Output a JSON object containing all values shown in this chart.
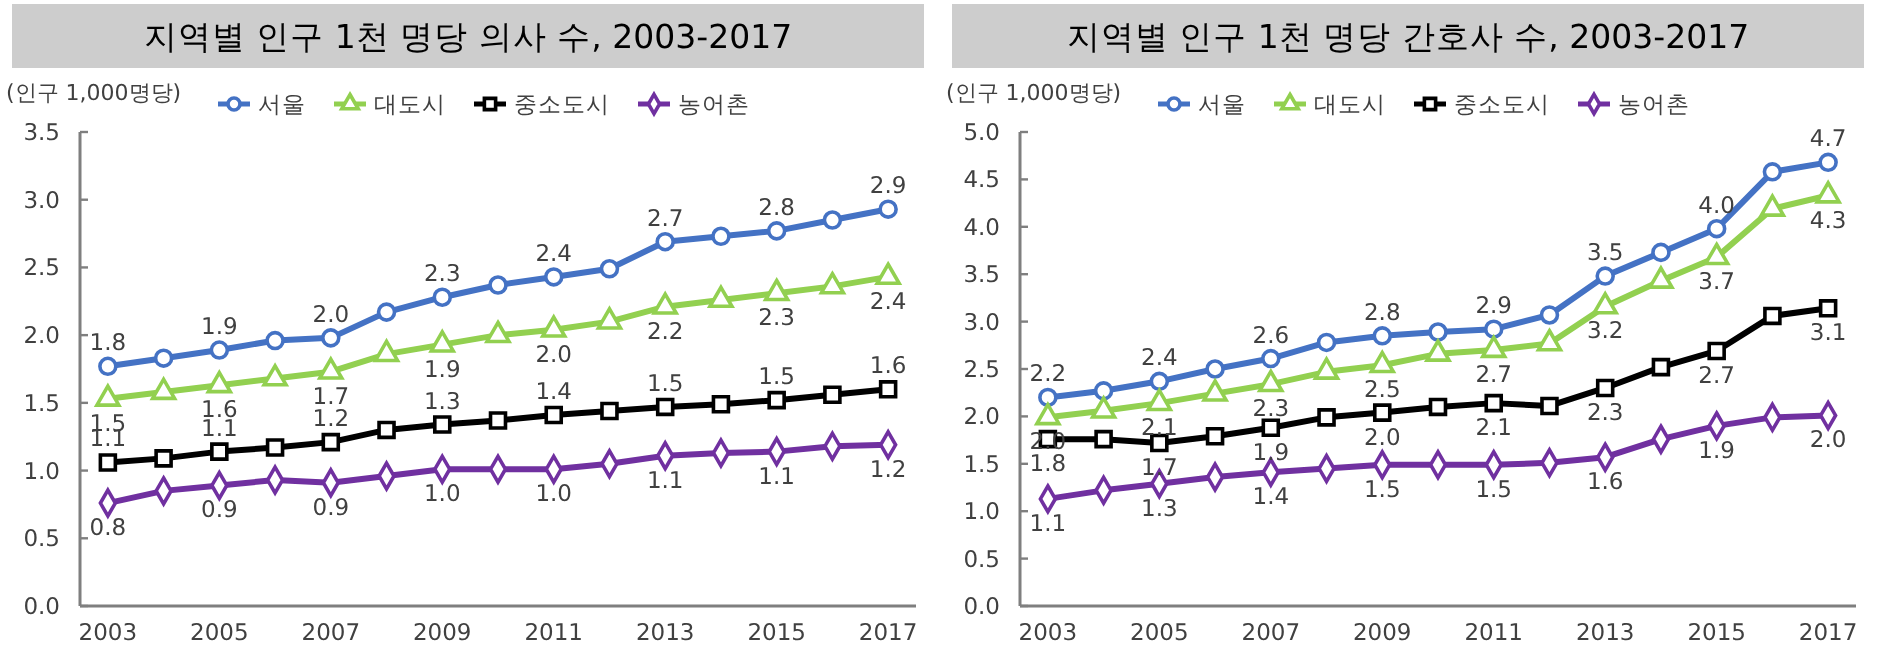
{
  "chart_data": [
    {
      "type": "line",
      "title": "지역별 인구 1천 명당 의사 수, 2003-2017",
      "ylabel": "(인구 1,000명당)",
      "legend": "top",
      "categories": [
        "2003",
        null,
        "2005",
        null,
        "2007",
        null,
        "2009",
        null,
        "2011",
        null,
        "2013",
        null,
        "2015",
        null,
        "2017"
      ],
      "ylim": [
        0,
        3.5
      ],
      "yticks": [
        {
          "value": 0,
          "label": "0.0"
        },
        {
          "value": 0.5,
          "label": "0.5"
        },
        {
          "value": 1,
          "label": "1.0"
        },
        {
          "value": 1.5,
          "label": "1.5"
        },
        {
          "value": 2,
          "label": "2.0"
        },
        {
          "value": 2.5,
          "label": "2.5"
        },
        {
          "value": 3,
          "label": "3.0"
        },
        {
          "value": 3.5,
          "label": "3.5"
        }
      ],
      "series": [
        {
          "name": "서울",
          "color": "#4472c4",
          "marker": "circle",
          "values": [
            1.77,
            1.83,
            1.89,
            1.96,
            1.98,
            2.17,
            2.28,
            2.37,
            2.43,
            2.49,
            2.69,
            2.73,
            2.77,
            2.85,
            2.93
          ],
          "value_labels": [
            "1.8",
            null,
            "1.9",
            null,
            "2.0",
            null,
            "2.3",
            null,
            "2.4",
            null,
            "2.7",
            null,
            "2.8",
            null,
            "2.9"
          ]
        },
        {
          "name": "대도시",
          "color": "#92d050",
          "marker": "triangle",
          "values": [
            1.53,
            1.58,
            1.63,
            1.68,
            1.73,
            1.86,
            1.93,
            2.0,
            2.04,
            2.1,
            2.21,
            2.26,
            2.31,
            2.36,
            2.43
          ],
          "value_labels": [
            "1.5",
            null,
            "1.6",
            null,
            "1.7",
            null,
            "1.9",
            null,
            "2.0",
            null,
            "2.2",
            null,
            "2.3",
            null,
            "2.4"
          ]
        },
        {
          "name": "중소도시",
          "color": "#000000",
          "marker": "square",
          "values": [
            1.06,
            1.09,
            1.14,
            1.17,
            1.21,
            1.3,
            1.34,
            1.37,
            1.41,
            1.44,
            1.47,
            1.49,
            1.52,
            1.56,
            1.6
          ],
          "value_labels": [
            "1.1",
            null,
            "1.1",
            null,
            "1.2",
            null,
            "1.3",
            null,
            "1.4",
            null,
            "1.5",
            null,
            "1.5",
            null,
            "1.6"
          ]
        },
        {
          "name": "농어촌",
          "color": "#7030a0",
          "marker": "diamond",
          "values": [
            0.76,
            0.85,
            0.89,
            0.93,
            0.91,
            0.96,
            1.01,
            1.01,
            1.01,
            1.05,
            1.11,
            1.13,
            1.14,
            1.18,
            1.19
          ],
          "value_labels": [
            "0.8",
            null,
            "0.9",
            null,
            "0.9",
            null,
            "1.0",
            null,
            "1.0",
            null,
            "1.1",
            null,
            "1.1",
            null,
            "1.2"
          ]
        }
      ]
    },
    {
      "type": "line",
      "title": "지역별 인구 1천 명당 간호사 수, 2003-2017",
      "ylabel": "(인구 1,000명당)",
      "legend": "top",
      "categories": [
        "2003",
        null,
        "2005",
        null,
        "2007",
        null,
        "2009",
        null,
        "2011",
        null,
        "2013",
        null,
        "2015",
        null,
        "2017"
      ],
      "ylim": [
        0,
        5
      ],
      "yticks": [
        {
          "value": 0,
          "label": "0.0"
        },
        {
          "value": 0.5,
          "label": "0.5"
        },
        {
          "value": 1,
          "label": "1.0"
        },
        {
          "value": 1.5,
          "label": "1.5"
        },
        {
          "value": 2,
          "label": "2.0"
        },
        {
          "value": 2.5,
          "label": "2.5"
        },
        {
          "value": 3,
          "label": "3.0"
        },
        {
          "value": 3.5,
          "label": "3.5"
        },
        {
          "value": 4,
          "label": "4.0"
        },
        {
          "value": 4.5,
          "label": "4.5"
        },
        {
          "value": 5,
          "label": "5.0"
        }
      ],
      "series": [
        {
          "name": "서울",
          "color": "#4472c4",
          "marker": "circle",
          "values": [
            2.2,
            2.27,
            2.37,
            2.5,
            2.61,
            2.78,
            2.85,
            2.89,
            2.92,
            3.07,
            3.48,
            3.73,
            3.98,
            4.58,
            4.68
          ],
          "value_labels": [
            "2.2",
            null,
            "2.4",
            null,
            "2.6",
            null,
            "2.8",
            null,
            "2.9",
            null,
            "3.5",
            null,
            "4.0",
            null,
            "4.7"
          ]
        },
        {
          "name": "대도시",
          "color": "#92d050",
          "marker": "triangle",
          "values": [
            1.99,
            2.06,
            2.14,
            2.24,
            2.34,
            2.47,
            2.54,
            2.66,
            2.7,
            2.77,
            3.16,
            3.43,
            3.68,
            4.19,
            4.33
          ],
          "value_labels": [
            "2.0",
            null,
            "2.1",
            null,
            "2.3",
            null,
            "2.5",
            null,
            "2.7",
            null,
            "3.2",
            null,
            "3.7",
            null,
            "4.3"
          ]
        },
        {
          "name": "중소도시",
          "color": "#000000",
          "marker": "square",
          "values": [
            1.76,
            1.76,
            1.72,
            1.79,
            1.88,
            1.99,
            2.04,
            2.1,
            2.14,
            2.11,
            2.3,
            2.52,
            2.69,
            3.06,
            3.14
          ],
          "value_labels": [
            "1.8",
            null,
            "1.7",
            null,
            "1.9",
            null,
            "2.0",
            null,
            "2.1",
            null,
            "2.3",
            null,
            "2.7",
            null,
            "3.1"
          ]
        },
        {
          "name": "농어촌",
          "color": "#7030a0",
          "marker": "diamond",
          "values": [
            1.13,
            1.22,
            1.29,
            1.36,
            1.41,
            1.45,
            1.49,
            1.49,
            1.49,
            1.51,
            1.57,
            1.76,
            1.9,
            1.99,
            2.01
          ],
          "value_labels": [
            "1.1",
            null,
            "1.3",
            null,
            "1.4",
            null,
            "1.5",
            null,
            "1.5",
            null,
            "1.6",
            null,
            "1.9",
            null,
            "2.0"
          ]
        }
      ]
    }
  ]
}
